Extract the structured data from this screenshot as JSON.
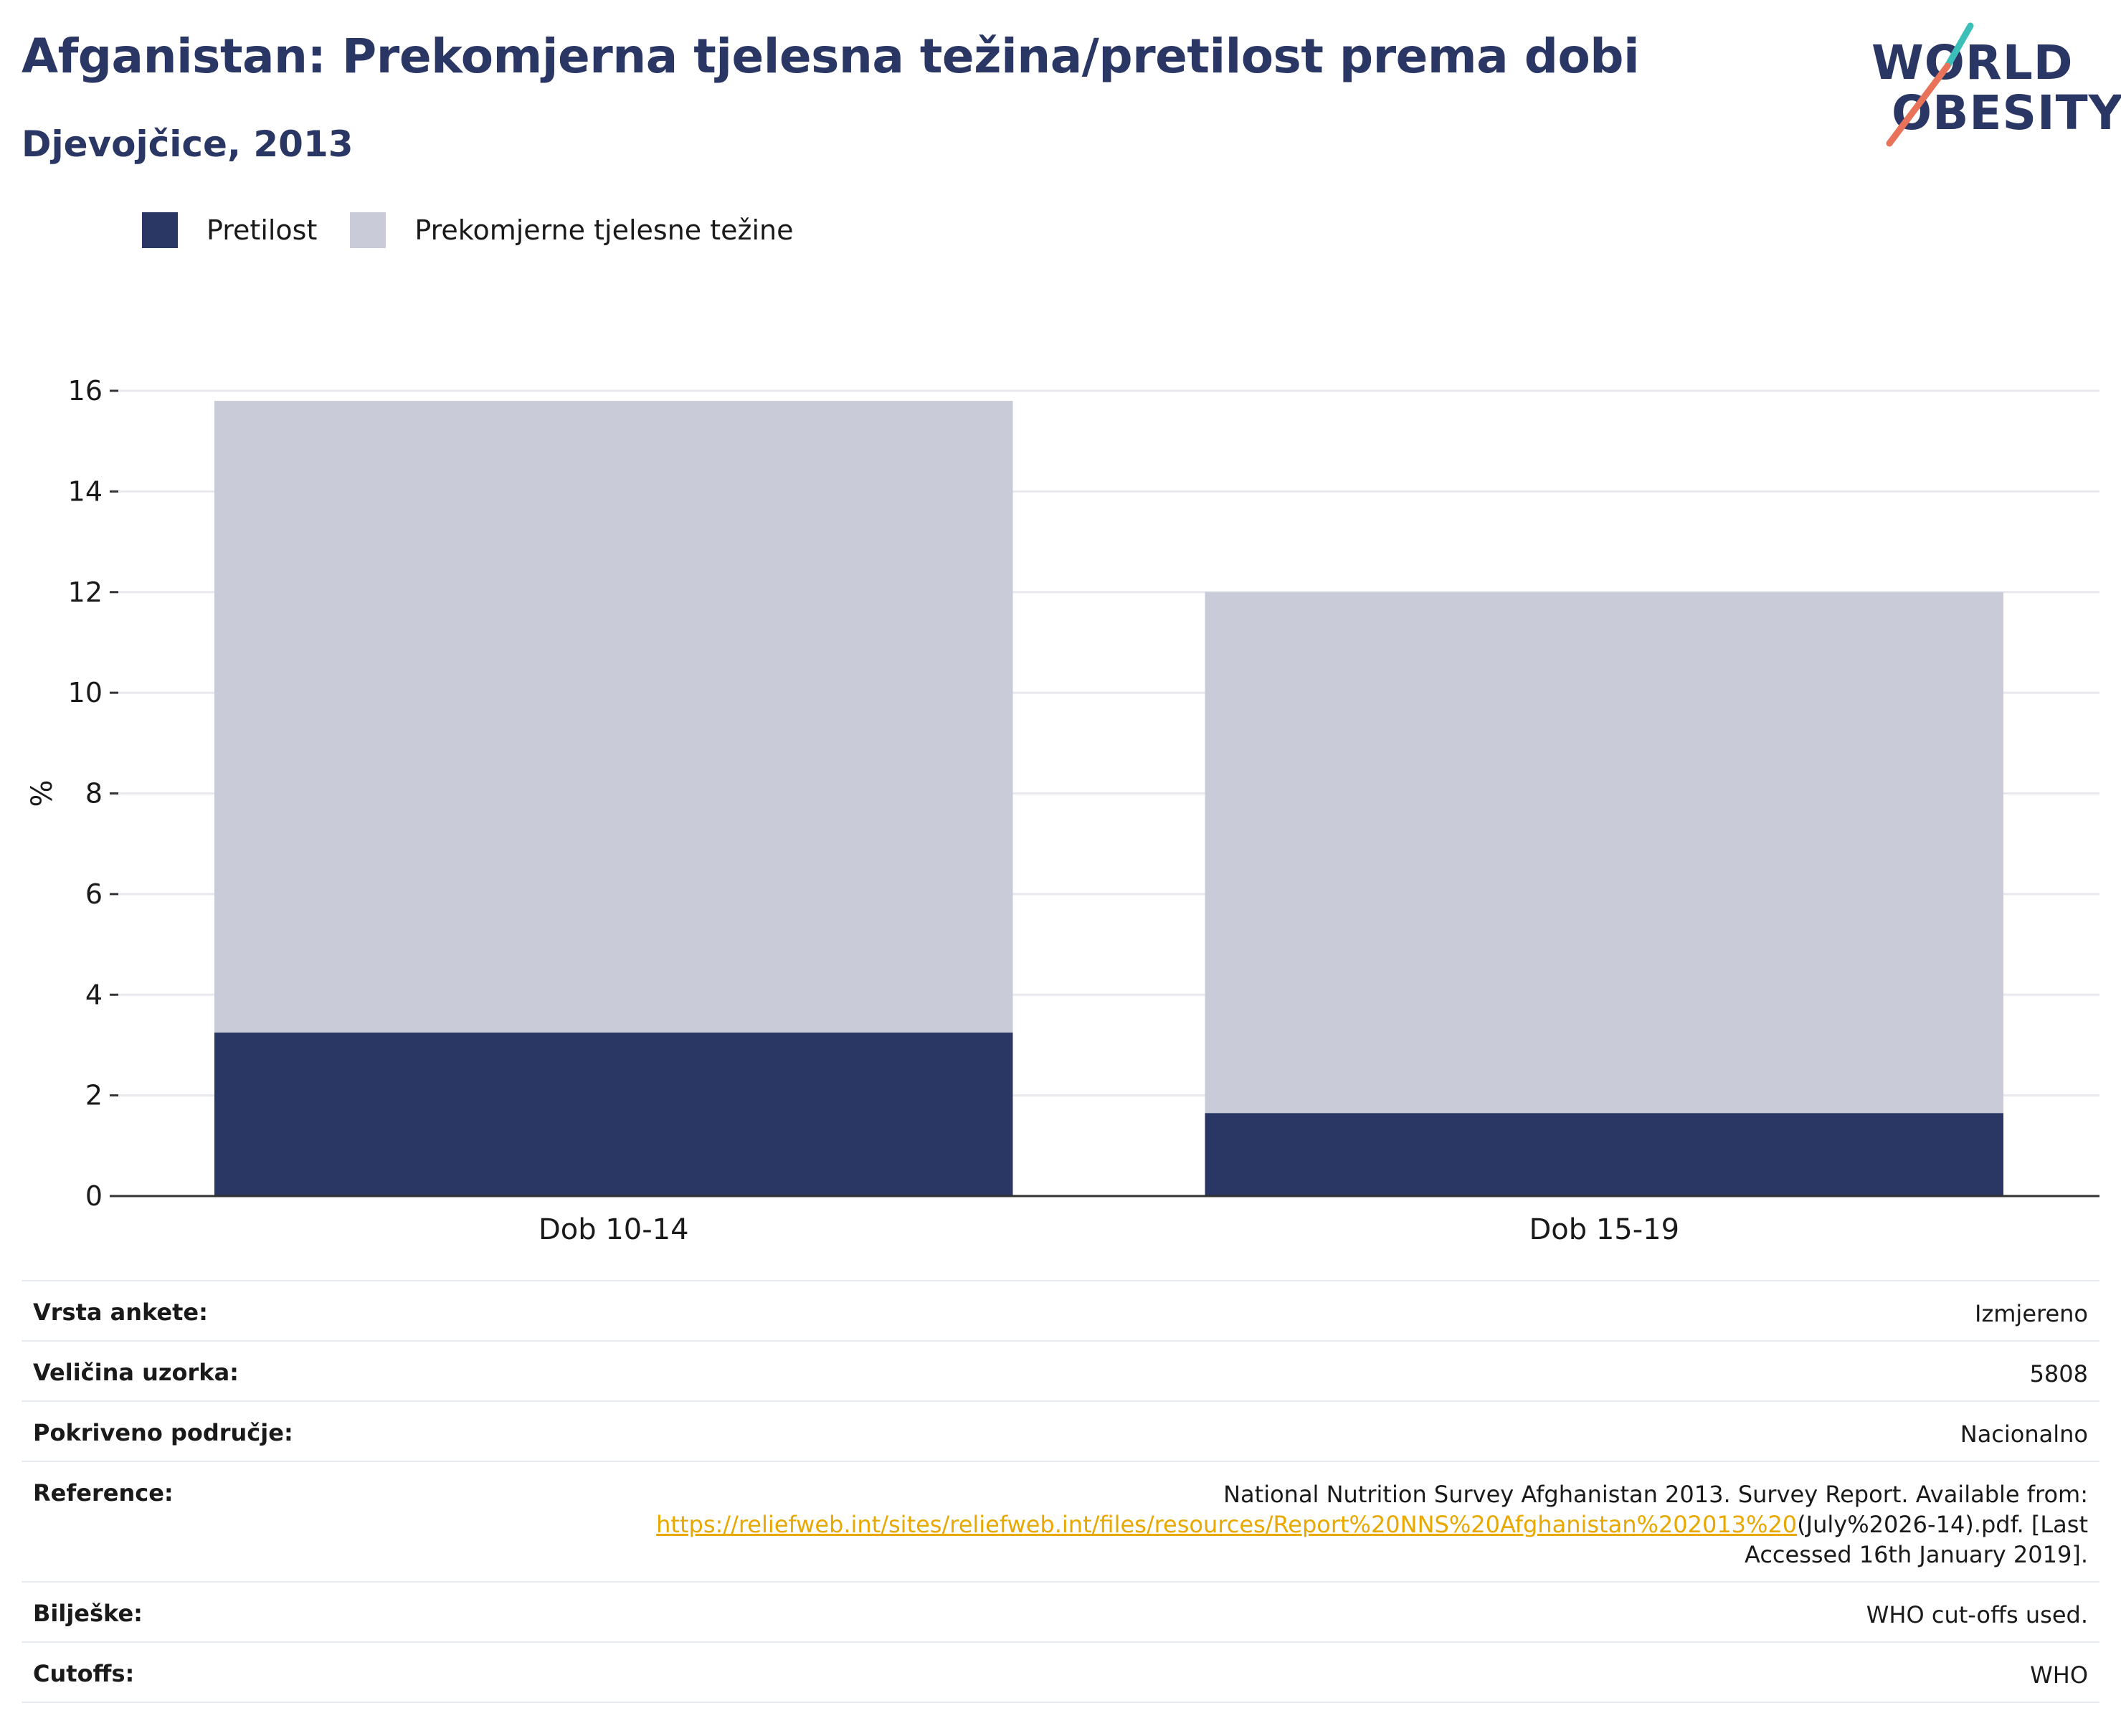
{
  "header": {
    "title": "Afganistan: Prekomjerna tjelesna težina/pretilost prema dobi",
    "subtitle": "Djevojčice, 2013"
  },
  "logo": {
    "line1": "WORLD",
    "line2": "OBESITY"
  },
  "colors": {
    "obesity": "#2a3663",
    "overweight": "#c9ccd8",
    "grid": "#e8e8ee",
    "axis": "#333333",
    "link": "#e9a800",
    "logo_teal": "#3bbfb8",
    "logo_coral": "#e8735a"
  },
  "legend": [
    {
      "label": "Pretilost",
      "color": "#2a3663"
    },
    {
      "label": "Prekomjerne tjelesne težine",
      "color": "#c9ccd8"
    }
  ],
  "chart_data": {
    "type": "bar",
    "stacked": true,
    "categories": [
      "Dob 10-14",
      "Dob 15-19"
    ],
    "series": [
      {
        "name": "Pretilost",
        "values": [
          3.25,
          1.65
        ]
      },
      {
        "name": "Prekomjerne tjelesne težine",
        "values": [
          12.55,
          10.35
        ]
      }
    ],
    "ylabel": "%",
    "ylim": [
      0,
      16
    ],
    "yticks": [
      0,
      2,
      4,
      6,
      8,
      10,
      12,
      14,
      16
    ],
    "grid": true,
    "legend_position": "top-left"
  },
  "info": {
    "survey_type": {
      "label": "Vrsta ankete:",
      "value": "Izmjereno"
    },
    "sample_size": {
      "label": "Veličina uzorka:",
      "value": "5808"
    },
    "coverage": {
      "label": "Pokriveno područje:",
      "value": "Nacionalno"
    },
    "reference": {
      "label": "Reference:",
      "text_before": "National Nutrition Survey Afghanistan 2013. Survey Report. Available from:",
      "link": "https://reliefweb.int/sites/reliefweb.int/files/resources/Report%20NNS%20Afghanistan%202013%20",
      "text_after": "(July%2026-14).pdf. [Last",
      "text_end": "Accessed 16th January 2019]."
    },
    "notes": {
      "label": "Bilješke:",
      "value": "WHO cut-offs used."
    },
    "cutoffs": {
      "label": "Cutoffs:",
      "value": "WHO"
    }
  }
}
